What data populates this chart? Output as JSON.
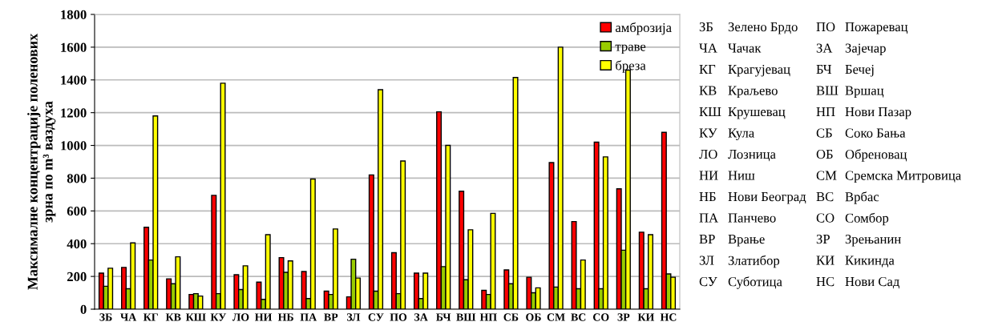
{
  "chart_data": {
    "type": "bar",
    "ylabel": "Максималне концентрације поленових\nзрна по m³ ваздуха",
    "categories": [
      "ЗБ",
      "ЧА",
      "КГ",
      "КВ",
      "КШ",
      "КУ",
      "ЛО",
      "НИ",
      "НБ",
      "ПА",
      "ВР",
      "ЗЛ",
      "СУ",
      "ПО",
      "ЗА",
      "БЧ",
      "ВШ",
      "НП",
      "СБ",
      "ОБ",
      "СМ",
      "ВС",
      "СО",
      "ЗР",
      "КИ",
      "НС"
    ],
    "series": [
      {
        "name": "амброзија",
        "color": "#ff0000",
        "values": [
          220,
          255,
          500,
          185,
          90,
          695,
          210,
          165,
          315,
          230,
          110,
          75,
          820,
          345,
          220,
          1205,
          720,
          115,
          240,
          195,
          895,
          535,
          1020,
          735,
          470,
          1080
        ]
      },
      {
        "name": "траве",
        "color": "#99cc00",
        "values": [
          140,
          125,
          300,
          155,
          95,
          95,
          120,
          60,
          225,
          65,
          90,
          305,
          110,
          95,
          65,
          260,
          180,
          90,
          155,
          100,
          135,
          125,
          125,
          360,
          125,
          215
        ]
      },
      {
        "name": "бреза",
        "color": "#ffff00",
        "values": [
          250,
          405,
          1180,
          320,
          80,
          1380,
          265,
          455,
          295,
          795,
          490,
          190,
          1340,
          905,
          220,
          1000,
          485,
          585,
          1415,
          130,
          1600,
          300,
          930,
          1460,
          455,
          195
        ]
      }
    ],
    "ylim": [
      0,
      1800
    ],
    "yticks": [
      0,
      200,
      400,
      600,
      800,
      1000,
      1200,
      1400,
      1600,
      1800
    ],
    "grid": "y",
    "legend": "top right",
    "annotations": [
      "ЗБ Зелено Брдо",
      "ЧА Чачак",
      "КГ Крагујевац",
      "КВ Краљево",
      "КШ Крушевац",
      "КУ Кула",
      "ЛО Лозница",
      "НИ Ниш",
      "НБ Нови Београд",
      "ПА Панчево",
      "ВР Врање",
      "ЗЛ Златибор",
      "СУ Суботица",
      "ПО Пожаревац",
      "ЗА Зајечар",
      "БЧ Бечеј",
      "ВШ Вршац",
      "НП Нови Пазар",
      "СБ Соко Бања",
      "ОБ Обреновац",
      "СМ Сремска Митровица",
      "ВС Врбас",
      "СО Сомбор",
      "ЗР Зрењанин",
      "КИ Кикинда",
      "НС Нови Сад"
    ]
  }
}
